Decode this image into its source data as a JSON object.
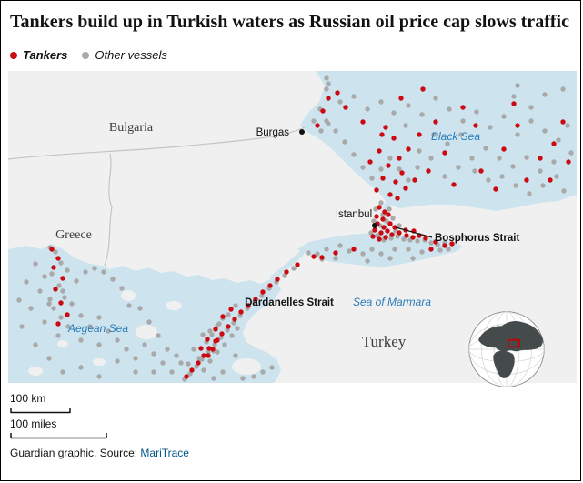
{
  "title": "Tankers build up in Turkish waters as Russian oil price cap slows traffic",
  "legend": {
    "tankers_label": "Tankers",
    "others_label": "Other vessels"
  },
  "colors": {
    "tanker": "#cc0a11",
    "other": "#a9a9a9",
    "water": "#cde4ef",
    "land": "#f0f0f0",
    "border": "#c4c4c4",
    "water_label": "#2a7bb8",
    "text": "#121212",
    "link": "#005689"
  },
  "map": {
    "labels": {
      "bulgaria": "Bulgaria",
      "greece": "Greece",
      "turkey": "Turkey",
      "black_sea": "Black Sea",
      "aegean_sea": "Aegean Sea",
      "marmara": "Sea of Marmara",
      "burgas": "Burgas",
      "istanbul": "Istanbul",
      "bosphorus": "Bosphorus Strait",
      "dardanelles": "Dardanelles Strait"
    },
    "points": {
      "tankers": [
        [
          346,
          44
        ],
        [
          352,
          30
        ],
        [
          340,
          60
        ],
        [
          371,
          40
        ],
        [
          390,
          56
        ],
        [
          362,
          24
        ],
        [
          432,
          30
        ],
        [
          456,
          20
        ],
        [
          415,
          62
        ],
        [
          424,
          74
        ],
        [
          408,
          88
        ],
        [
          430,
          96
        ],
        [
          418,
          104
        ],
        [
          412,
          118
        ],
        [
          426,
          122
        ],
        [
          405,
          131
        ],
        [
          420,
          136
        ],
        [
          433,
          112
        ],
        [
          398,
          100
        ],
        [
          440,
          86
        ],
        [
          411,
          70
        ],
        [
          428,
          140
        ],
        [
          437,
          129
        ],
        [
          447,
          120
        ],
        [
          470,
          56
        ],
        [
          500,
          40
        ],
        [
          545,
          86
        ],
        [
          560,
          60
        ],
        [
          585,
          96
        ],
        [
          600,
          80
        ],
        [
          570,
          120
        ],
        [
          520,
          110
        ],
        [
          490,
          125
        ],
        [
          610,
          56
        ],
        [
          556,
          36
        ],
        [
          480,
          90
        ],
        [
          514,
          60
        ],
        [
          596,
          120
        ],
        [
          616,
          100
        ],
        [
          536,
          130
        ],
        [
          462,
          110
        ],
        [
          452,
          70
        ],
        [
          408,
          150
        ],
        [
          414,
          155
        ],
        [
          405,
          160
        ],
        [
          412,
          163
        ],
        [
          418,
          158
        ],
        [
          406,
          168
        ],
        [
          413,
          172
        ],
        [
          420,
          168
        ],
        [
          403,
          175
        ],
        [
          410,
          178
        ],
        [
          417,
          176
        ],
        [
          425,
          172
        ],
        [
          401,
          182
        ],
        [
          408,
          185
        ],
        [
          415,
          183
        ],
        [
          422,
          180
        ],
        [
          430,
          178
        ],
        [
          438,
          181
        ],
        [
          445,
          183
        ],
        [
          452,
          181
        ],
        [
          459,
          184
        ],
        [
          437,
          175
        ],
        [
          446,
          176
        ],
        [
          470,
          188
        ],
        [
          480,
          192
        ],
        [
          465,
          196
        ],
        [
          488,
          190
        ],
        [
          380,
          196
        ],
        [
          360,
          200
        ],
        [
          345,
          205
        ],
        [
          336,
          204
        ],
        [
          318,
          213
        ],
        [
          306,
          221
        ],
        [
          296,
          229
        ],
        [
          288,
          236
        ],
        [
          280,
          243
        ],
        [
          272,
          251
        ],
        [
          264,
          258
        ],
        [
          256,
          265
        ],
        [
          249,
          273
        ],
        [
          242,
          281
        ],
        [
          235,
          289
        ],
        [
          228,
          297
        ],
        [
          221,
          305
        ],
        [
          215,
          313
        ],
        [
          209,
          321
        ],
        [
          202,
          329
        ],
        [
          196,
          336
        ],
        [
          236,
          270
        ],
        [
          245,
          262
        ],
        [
          228,
          284
        ],
        [
          230,
          296
        ],
        [
          225,
          306
        ],
        [
          220,
          313
        ],
        [
          219,
          295
        ],
        [
          212,
          305
        ],
        [
          48,
          196
        ],
        [
          55,
          206
        ],
        [
          50,
          216
        ],
        [
          60,
          228
        ],
        [
          52,
          240
        ],
        [
          58,
          255
        ],
        [
          65,
          268
        ],
        [
          55,
          278
        ]
      ],
      "others": [
        [
          350,
          20
        ],
        [
          365,
          34
        ],
        [
          380,
          28
        ],
        [
          395,
          42
        ],
        [
          410,
          34
        ],
        [
          424,
          46
        ],
        [
          440,
          38
        ],
        [
          455,
          48
        ],
        [
          470,
          30
        ],
        [
          485,
          42
        ],
        [
          500,
          55
        ],
        [
          515,
          45
        ],
        [
          530,
          62
        ],
        [
          545,
          50
        ],
        [
          560,
          70
        ],
        [
          575,
          55
        ],
        [
          590,
          66
        ],
        [
          605,
          76
        ],
        [
          615,
          60
        ],
        [
          619,
          90
        ],
        [
          600,
          100
        ],
        [
          585,
          110
        ],
        [
          570,
          95
        ],
        [
          555,
          105
        ],
        [
          540,
          96
        ],
        [
          525,
          85
        ],
        [
          510,
          96
        ],
        [
          495,
          106
        ],
        [
          480,
          116
        ],
        [
          465,
          96
        ],
        [
          450,
          106
        ],
        [
          440,
          120
        ],
        [
          430,
          108
        ],
        [
          420,
          96
        ],
        [
          410,
          108
        ],
        [
          400,
          118
        ],
        [
          390,
          106
        ],
        [
          380,
          92
        ],
        [
          370,
          78
        ],
        [
          360,
          66
        ],
        [
          350,
          55
        ],
        [
          343,
          42
        ],
        [
          352,
          14
        ],
        [
          350,
          8
        ],
        [
          437,
          60
        ],
        [
          452,
          88
        ],
        [
          468,
          70
        ],
        [
          483,
          80
        ],
        [
          498,
          70
        ],
        [
          513,
          110
        ],
        [
          528,
          120
        ],
        [
          543,
          116
        ],
        [
          558,
          126
        ],
        [
          573,
          135
        ],
        [
          588,
          126
        ],
        [
          603,
          116
        ],
        [
          611,
          132
        ],
        [
          560,
          16
        ],
        [
          590,
          26
        ],
        [
          610,
          20
        ],
        [
          575,
          40
        ],
        [
          556,
          28
        ],
        [
          336,
          55
        ],
        [
          344,
          66
        ],
        [
          352,
          58
        ],
        [
          410,
          145
        ],
        [
          404,
          152
        ],
        [
          412,
          158
        ],
        [
          419,
          152
        ],
        [
          402,
          165
        ],
        [
          409,
          170
        ],
        [
          416,
          165
        ],
        [
          423,
          162
        ],
        [
          399,
          178
        ],
        [
          406,
          181
        ],
        [
          413,
          186
        ],
        [
          421,
          184
        ],
        [
          428,
          182
        ],
        [
          435,
          185
        ],
        [
          442,
          186
        ],
        [
          450,
          187
        ],
        [
          458,
          186
        ],
        [
          465,
          189
        ],
        [
          472,
          191
        ],
        [
          480,
          189
        ],
        [
          430,
          170
        ],
        [
          426,
          176
        ],
        [
          350,
          196
        ],
        [
          365,
          192
        ],
        [
          375,
          198
        ],
        [
          390,
          201
        ],
        [
          400,
          196
        ],
        [
          410,
          201
        ],
        [
          425,
          196
        ],
        [
          440,
          196
        ],
        [
          455,
          199
        ],
        [
          340,
          201
        ],
        [
          330,
          200
        ],
        [
          345,
          207
        ],
        [
          360,
          206
        ],
        [
          395,
          209
        ],
        [
          420,
          206
        ],
        [
          445,
          206
        ],
        [
          475,
          197
        ],
        [
          484,
          196
        ],
        [
          314,
          217
        ],
        [
          304,
          225
        ],
        [
          295,
          232
        ],
        [
          287,
          239
        ],
        [
          279,
          247
        ],
        [
          271,
          254
        ],
        [
          263,
          261
        ],
        [
          255,
          269
        ],
        [
          248,
          277
        ],
        [
          241,
          285
        ],
        [
          234,
          293
        ],
        [
          227,
          301
        ],
        [
          220,
          309
        ],
        [
          213,
          317
        ],
        [
          207,
          325
        ],
        [
          200,
          333
        ],
        [
          194,
          339
        ],
        [
          250,
          258
        ],
        [
          242,
          268
        ],
        [
          232,
          278
        ],
        [
          224,
          290
        ],
        [
          238,
          301
        ],
        [
          230,
          309
        ],
        [
          222,
          319
        ],
        [
          215,
          329
        ],
        [
          246,
          291
        ],
        [
          252,
          283
        ],
        [
          222,
          286
        ],
        [
          218,
          298
        ],
        [
          226,
          308
        ],
        [
          210,
          316
        ],
        [
          204,
          306
        ],
        [
          198,
          322
        ],
        [
          214,
          290
        ],
        [
          230,
          280
        ],
        [
          236,
          272
        ],
        [
          30,
          212
        ],
        [
          40,
          226
        ],
        [
          35,
          242
        ],
        [
          45,
          256
        ],
        [
          60,
          242
        ],
        [
          70,
          256
        ],
        [
          80,
          269
        ],
        [
          90,
          281
        ],
        [
          100,
          271
        ],
        [
          110,
          286
        ],
        [
          120,
          296
        ],
        [
          130,
          306
        ],
        [
          140,
          316
        ],
        [
          150,
          301
        ],
        [
          160,
          311
        ],
        [
          170,
          321
        ],
        [
          180,
          331
        ],
        [
          190,
          321
        ],
        [
          165,
          291
        ],
        [
          155,
          276
        ],
        [
          145,
          261
        ],
        [
          133,
          258
        ],
        [
          125,
          239
        ],
        [
          115,
          229
        ],
        [
          105,
          221
        ],
        [
          95,
          217
        ],
        [
          85,
          221
        ],
        [
          75,
          231
        ],
        [
          65,
          219
        ],
        [
          175,
          306
        ],
        [
          185,
          313
        ],
        [
          160,
          331
        ],
        [
          140,
          331
        ],
        [
          120,
          319
        ],
        [
          100,
          301
        ],
        [
          80,
          296
        ],
        [
          55,
          291
        ],
        [
          40,
          276
        ],
        [
          25,
          261
        ],
        [
          20,
          232
        ],
        [
          30,
          301
        ],
        [
          45,
          316
        ],
        [
          60,
          331
        ],
        [
          80,
          326
        ],
        [
          100,
          336
        ],
        [
          15,
          281
        ],
        [
          12,
          252
        ],
        [
          46,
          194
        ],
        [
          52,
          199
        ],
        [
          58,
          211
        ],
        [
          48,
          223
        ],
        [
          56,
          236
        ],
        [
          62,
          249
        ],
        [
          50,
          261
        ],
        [
          58,
          271
        ],
        [
          66,
          281
        ],
        [
          46,
          251
        ],
        [
          250,
          313
        ],
        [
          258,
          338
        ],
        [
          270,
          336
        ],
        [
          280,
          331
        ],
        [
          290,
          326
        ],
        [
          236,
          331
        ],
        [
          226,
          338
        ]
      ]
    }
  },
  "scale": {
    "km_label": "100 km",
    "miles_label": "100 miles"
  },
  "footer": {
    "text": "Guardian graphic. Source: ",
    "link_label": "MariTrace"
  }
}
